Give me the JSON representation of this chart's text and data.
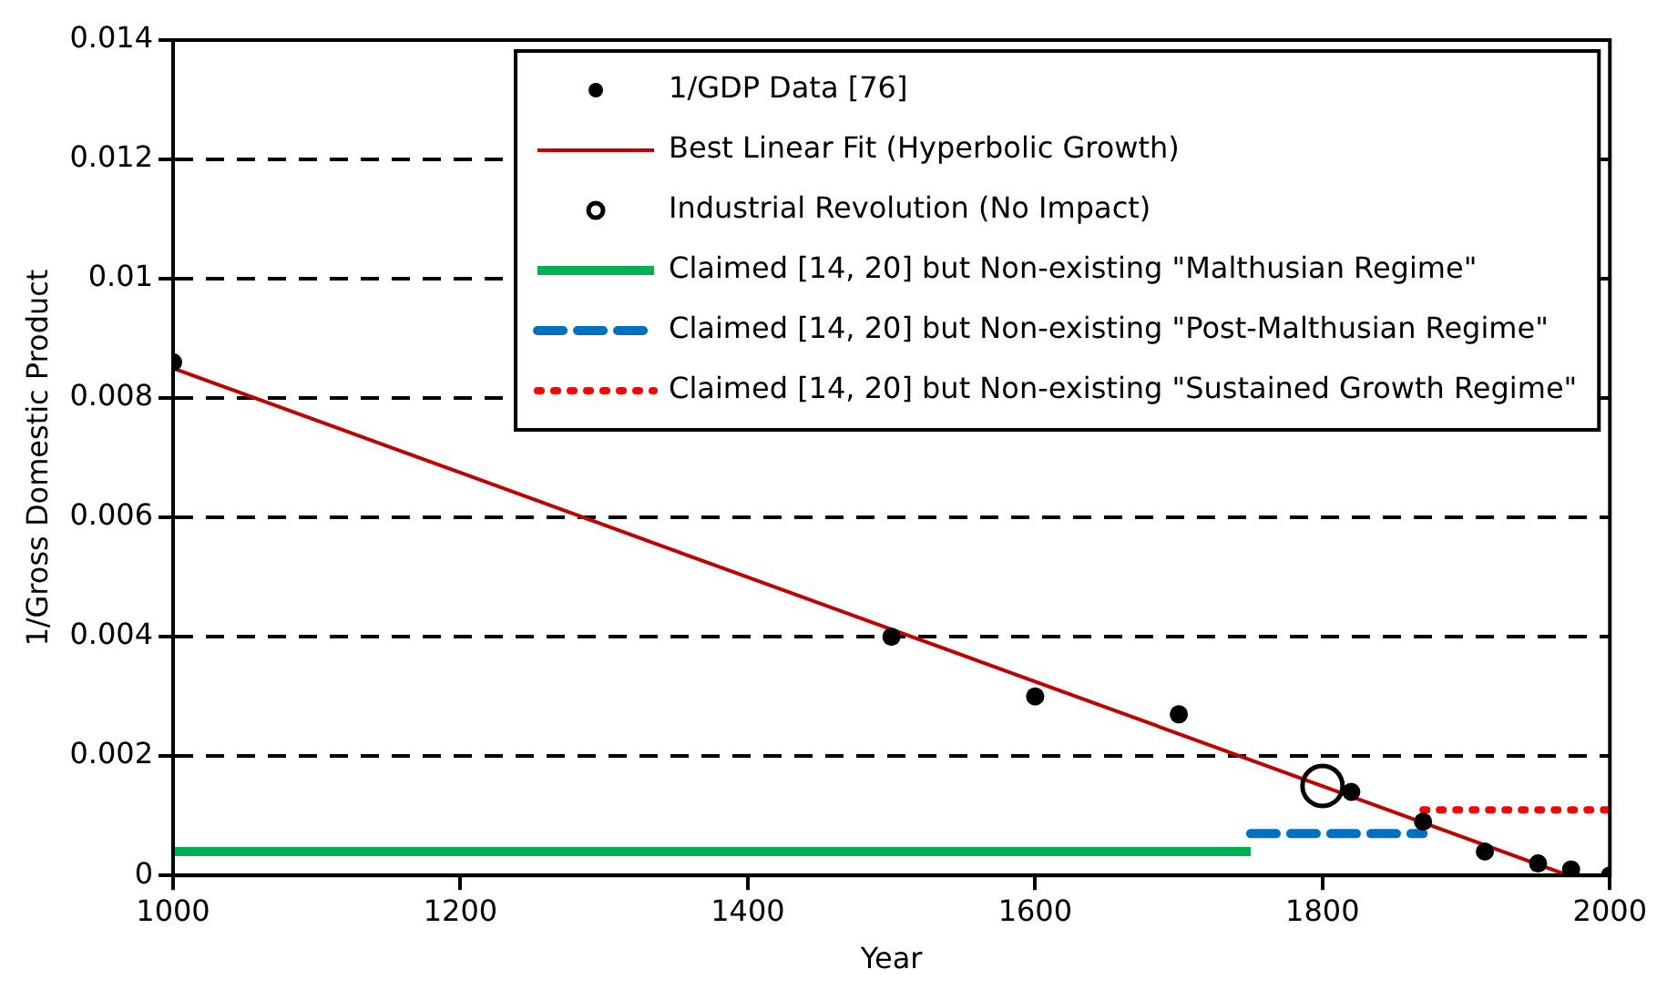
{
  "chart_data": {
    "type": "line",
    "xlabel": "Year",
    "ylabel": "1/Gross Domestic Product",
    "xlim": [
      1000,
      2000
    ],
    "xticks": [
      1000,
      1200,
      1400,
      1600,
      1800,
      2000
    ],
    "ylim": [
      0,
      0.014
    ],
    "yticks": [
      0,
      0.002,
      0.004,
      0.006,
      0.008,
      0.01,
      0.012,
      0.014
    ],
    "grid": "y",
    "legend": "top right",
    "series": [
      {
        "name": "1/GDP Data [76]",
        "type": "scatter",
        "marker": "circle",
        "color": "#000000",
        "x": [
          1000,
          1500,
          1600,
          1700,
          1820,
          1870,
          1913,
          1950,
          1973,
          2000
        ],
        "values": [
          0.0086,
          0.004,
          0.003,
          0.0027,
          0.0014,
          0.0009,
          0.0004,
          0.0002,
          0.0001,
          0
        ]
      },
      {
        "name": "Best Linear Fit (Hyperbolic Growth)",
        "line_style": "solid",
        "color": "#c00000",
        "x": [
          1000,
          1971
        ],
        "values": [
          0.0085,
          0
        ]
      },
      {
        "name": "Industrial Revolution (No Impact)",
        "type": "scatter",
        "marker": "circle",
        "color": "#000000",
        "x": [
          1800
        ],
        "values": [
          0.0015
        ]
      },
      {
        "name": "Claimed [14, 20] but Non-existing \"Malthusian Regime\"",
        "line_style": "solid",
        "color": "#00b050",
        "x": [
          1000,
          1750
        ],
        "values": [
          0.0004,
          0.0004
        ]
      },
      {
        "name": "Claimed [14, 20] but Non-existing \"Post-Malthusian Regime\"",
        "line_style": "dashed",
        "color": "#0070c0",
        "x": [
          1750,
          1870
        ],
        "values": [
          0.0007,
          0.0007
        ]
      },
      {
        "name": "Claimed [14, 20] but Non-existing \"Sustained Growth Regime\"",
        "line_style": "dotted",
        "color": "#ff0000",
        "x": [
          1870,
          2000
        ],
        "values": [
          0.0011,
          0.0011
        ]
      }
    ]
  }
}
